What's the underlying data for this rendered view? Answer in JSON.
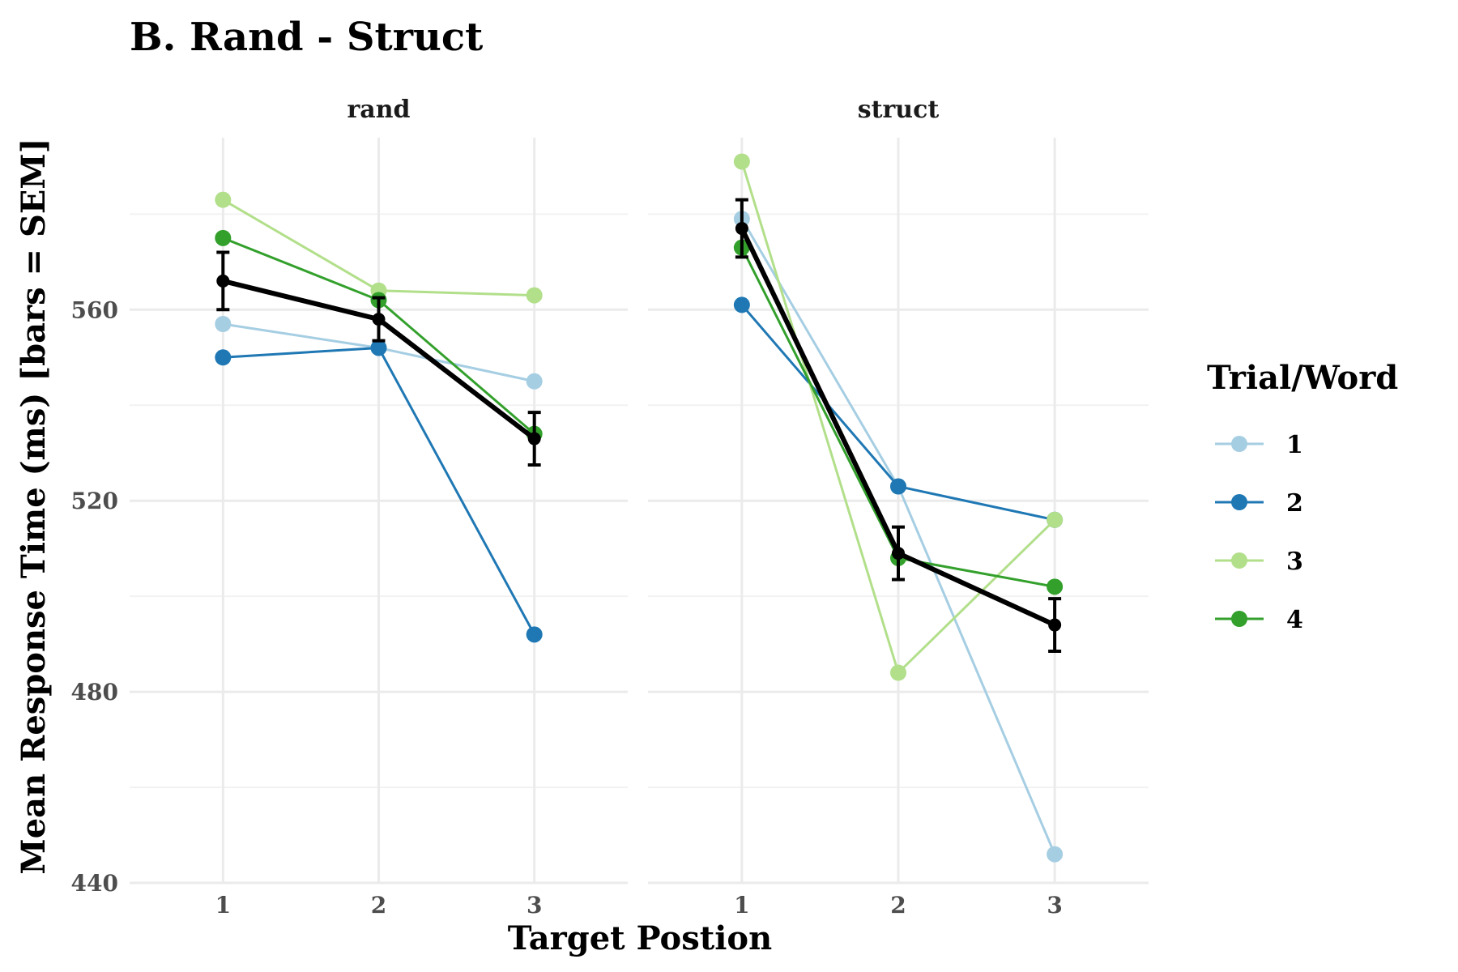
{
  "chart_data": {
    "type": "line",
    "title": "B. Rand - Struct",
    "xlabel": "Target Postion",
    "ylabel": "Mean Response Time (ms) [bars = SEM]",
    "x_ticks": [
      "1",
      "2",
      "3"
    ],
    "y_ticks": [
      440,
      480,
      520,
      560
    ],
    "ylim": [
      440,
      596
    ],
    "grid": true,
    "legend": {
      "title": "Trial/Word",
      "placement": "right",
      "entries": [
        "1",
        "2",
        "3",
        "4"
      ]
    },
    "series_colors": {
      "1": "#a6cee3",
      "2": "#1f78b4",
      "3": "#b2df8a",
      "4": "#33a02c",
      "mean": "#000000"
    },
    "panels": [
      {
        "facet": "rand",
        "series": [
          {
            "name": "1",
            "x": [
              1,
              2,
              3
            ],
            "y": [
              557,
              552,
              545
            ]
          },
          {
            "name": "2",
            "x": [
              1,
              2,
              3
            ],
            "y": [
              550,
              552,
              492
            ]
          },
          {
            "name": "3",
            "x": [
              1,
              2,
              3
            ],
            "y": [
              583,
              564,
              563
            ]
          },
          {
            "name": "4",
            "x": [
              1,
              2,
              3
            ],
            "y": [
              575,
              562,
              534
            ]
          }
        ],
        "mean": {
          "x": [
            1,
            2,
            3
          ],
          "y": [
            566,
            558,
            533
          ],
          "sem": [
            6,
            4.5,
            5.5
          ]
        }
      },
      {
        "facet": "struct",
        "series": [
          {
            "name": "1",
            "x": [
              1,
              2,
              3
            ],
            "y": [
              579,
              523,
              446
            ]
          },
          {
            "name": "2",
            "x": [
              1,
              2,
              3
            ],
            "y": [
              561,
              523,
              516
            ]
          },
          {
            "name": "3",
            "x": [
              1,
              2,
              3
            ],
            "y": [
              591,
              484,
              516
            ]
          },
          {
            "name": "4",
            "x": [
              1,
              2,
              3
            ],
            "y": [
              573,
              508,
              502
            ]
          }
        ],
        "mean": {
          "x": [
            1,
            2,
            3
          ],
          "y": [
            577,
            509,
            494
          ],
          "sem": [
            6,
            5.5,
            5.5
          ]
        }
      }
    ]
  }
}
